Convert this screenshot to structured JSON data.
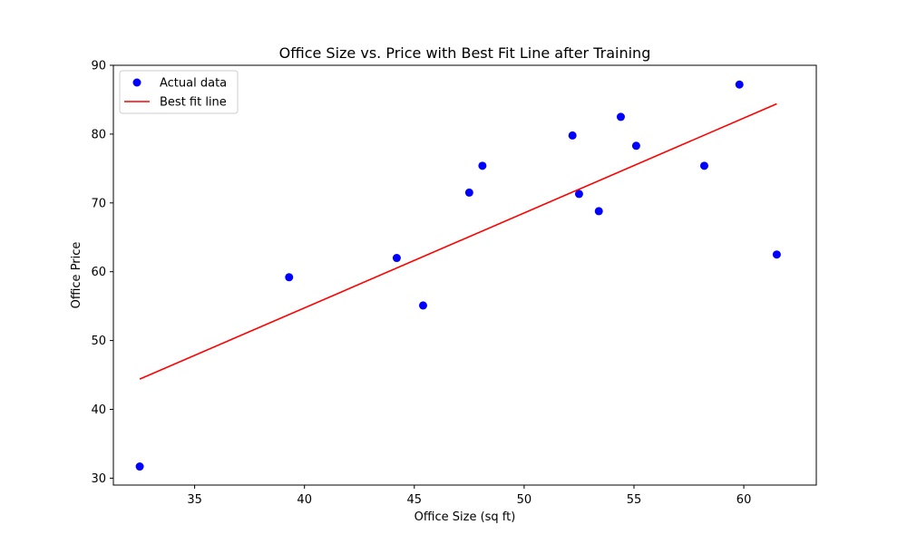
{
  "chart_data": {
    "type": "scatter",
    "title": "Office Size vs. Price with Best Fit Line after Training",
    "xlabel": "Office Size (sq ft)",
    "ylabel": "Office Price",
    "xlim": [
      31.3,
      63.3
    ],
    "ylim": [
      29.0,
      90.0
    ],
    "xticks": [
      35,
      40,
      45,
      50,
      55,
      60
    ],
    "yticks": [
      30,
      40,
      50,
      60,
      70,
      80,
      90
    ],
    "grid": false,
    "legend_position": "top-left",
    "series": [
      {
        "name": "Actual data",
        "kind": "scatter",
        "color": "#0000ff",
        "points": [
          {
            "x": 32.5,
            "y": 31.7
          },
          {
            "x": 39.3,
            "y": 59.2
          },
          {
            "x": 44.2,
            "y": 62.0
          },
          {
            "x": 45.4,
            "y": 55.1
          },
          {
            "x": 47.5,
            "y": 71.5
          },
          {
            "x": 48.1,
            "y": 75.4
          },
          {
            "x": 52.2,
            "y": 79.8
          },
          {
            "x": 52.5,
            "y": 71.3
          },
          {
            "x": 53.4,
            "y": 68.8
          },
          {
            "x": 54.4,
            "y": 82.5
          },
          {
            "x": 55.1,
            "y": 78.3
          },
          {
            "x": 58.2,
            "y": 75.4
          },
          {
            "x": 59.8,
            "y": 87.2
          },
          {
            "x": 61.5,
            "y": 62.5
          }
        ]
      },
      {
        "name": "Best fit line",
        "kind": "line",
        "color": "#ff0000",
        "points": [
          {
            "x": 32.5,
            "y": 44.4
          },
          {
            "x": 61.5,
            "y": 84.4
          }
        ]
      }
    ]
  }
}
